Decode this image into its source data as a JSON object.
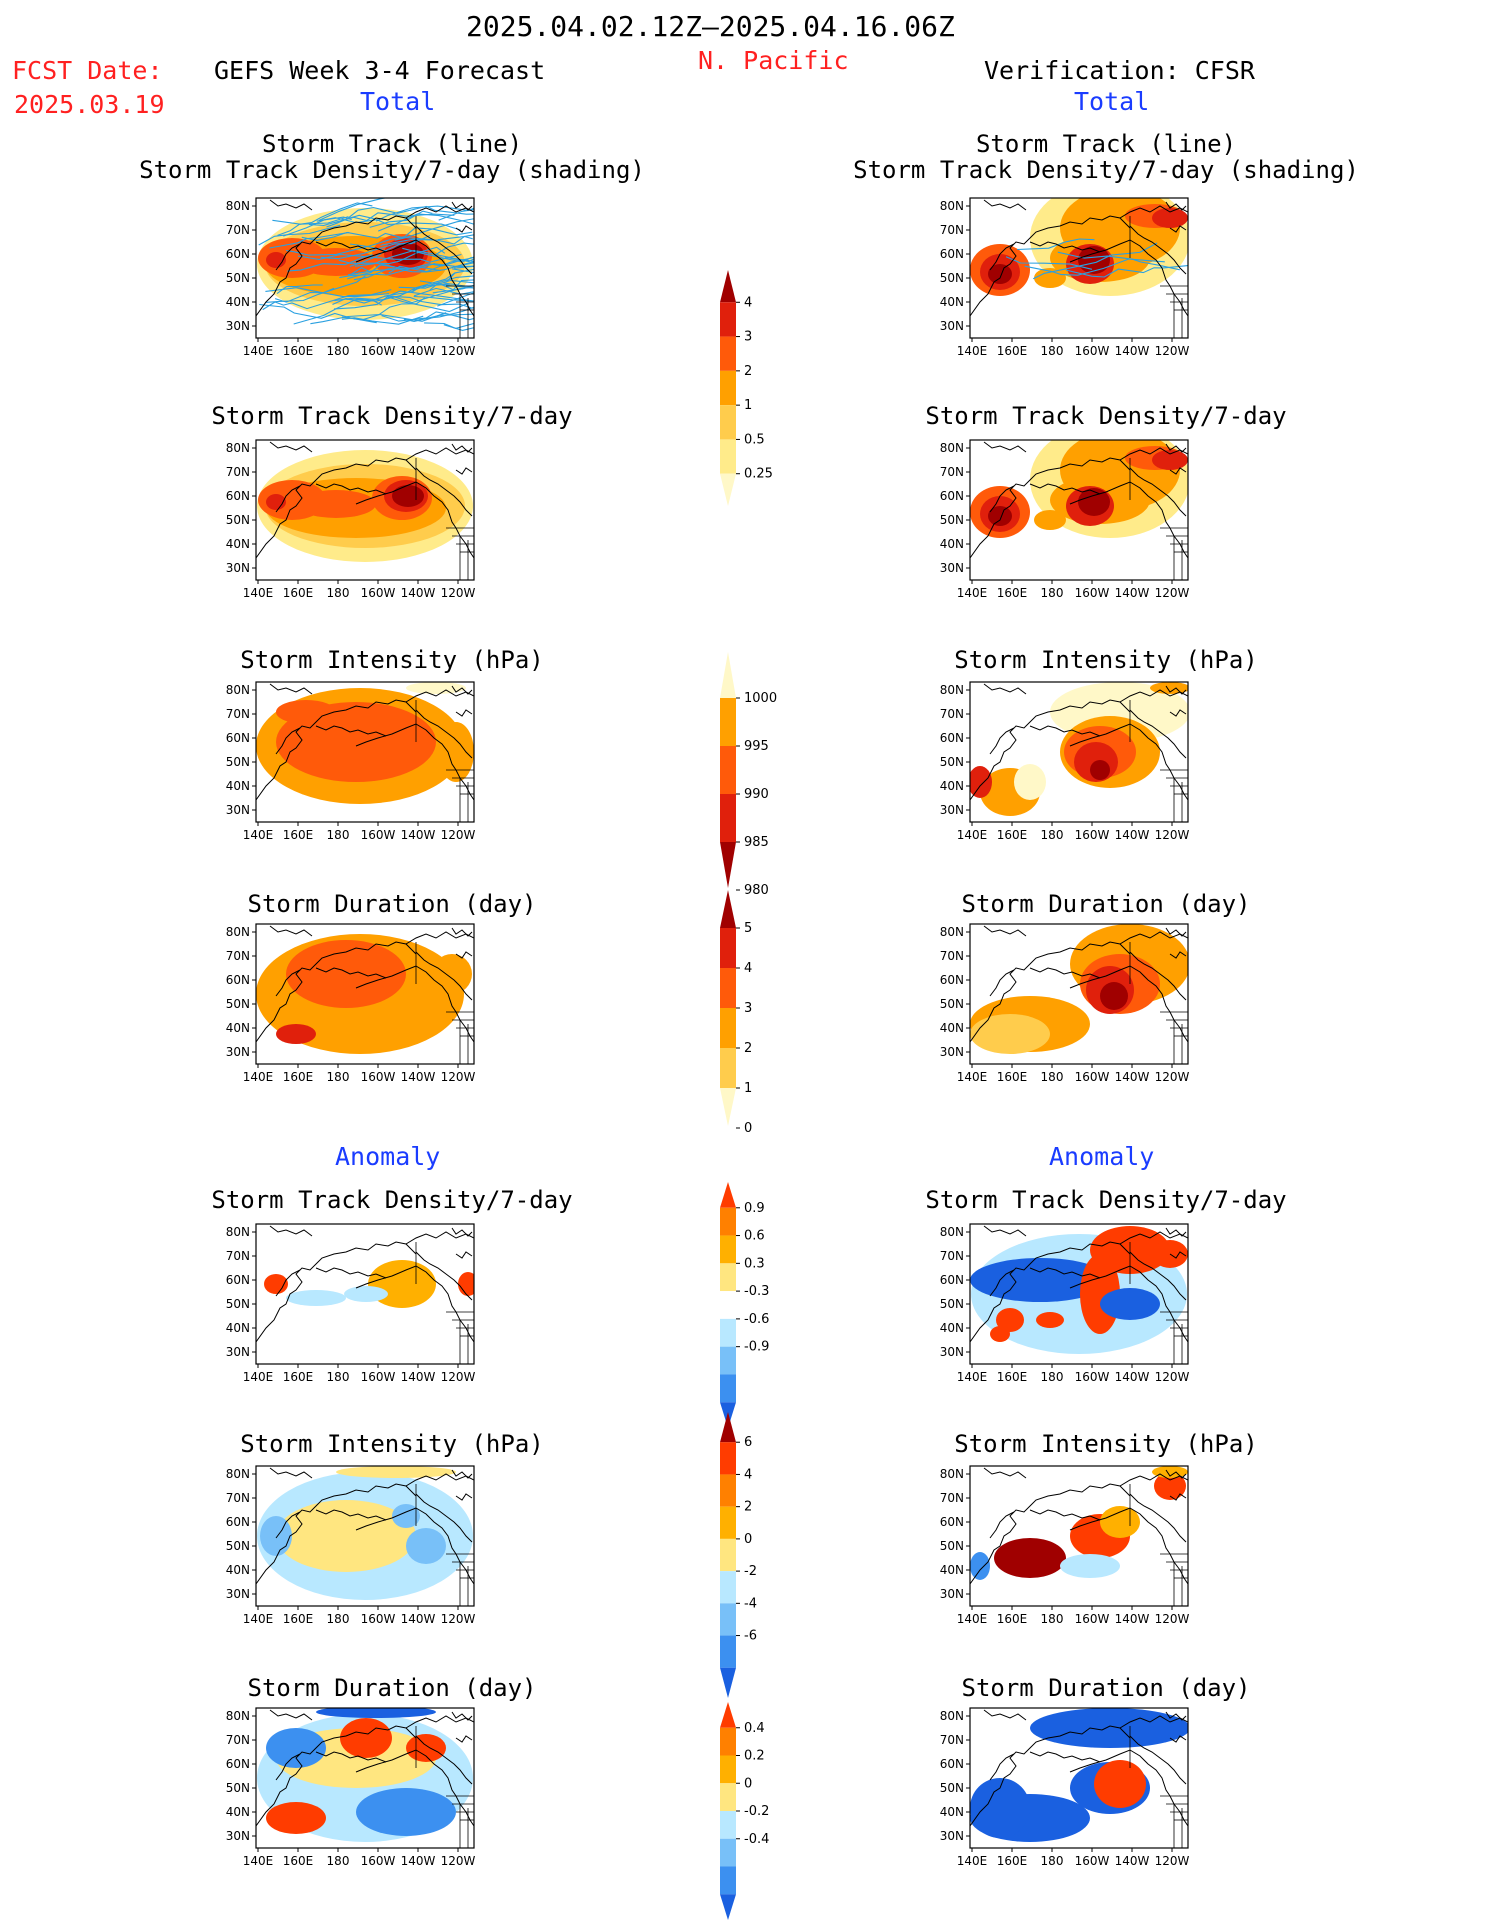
{
  "header": {
    "period": "2025.04.02.12Z–2025.04.16.06Z",
    "region": "N. Pacific",
    "fcst_label": "FCST Date:",
    "fcst_date": "2025.03.19",
    "left_title": "GEFS Week 3-4 Forecast",
    "right_title": "Verification: CFSR"
  },
  "sections": {
    "total": "Total",
    "anomaly": "Anomaly"
  },
  "panel_titles": {
    "track_line": "Storm Track (line)",
    "track_shading": "Storm Track Density/7-day (shading)",
    "density": "Storm Track Density/7-day",
    "intensity": "Storm Intensity (hPa)",
    "duration": "Storm Duration (day)"
  },
  "axes": {
    "lon_ticks": [
      "140E",
      "160E",
      "180",
      "160W",
      "140W",
      "120W"
    ],
    "lat_ticks": [
      "80N",
      "70N",
      "60N",
      "50N",
      "40N",
      "30N"
    ]
  },
  "colorbars": {
    "density": {
      "labels": [
        "4",
        "3",
        "2",
        "1",
        "0.5",
        "0.25"
      ],
      "colors": [
        "#a00000",
        "#e0200c",
        "#ff5a0a",
        "#ffa000",
        "#ffcc4c",
        "#ffeb8a",
        "#fff8c8"
      ]
    },
    "intensity": {
      "labels": [
        "1000",
        "995",
        "990",
        "985",
        "980"
      ],
      "colors": [
        "#fff8c8",
        "#ffa000",
        "#ff5a0a",
        "#e0200c",
        "#a00000"
      ]
    },
    "duration": {
      "labels": [
        "5",
        "4",
        "3",
        "2",
        "1",
        "0"
      ],
      "colors": [
        "#a00000",
        "#e0200c",
        "#ff5a0a",
        "#ffa000",
        "#ffcc4c",
        "#fff8c8"
      ]
    },
    "density_anom": {
      "labels": [
        "0.9",
        "0.6",
        "0.3",
        "-0.3",
        "-0.6",
        "-0.9"
      ],
      "colors": [
        "#ff3c00",
        "#ff8000",
        "#ffb000",
        "#ffe680",
        "#ffffff",
        "#b8e8ff",
        "#78c0f8",
        "#3c90f0",
        "#1a60e0"
      ]
    },
    "intensity_anom": {
      "labels": [
        "6",
        "4",
        "2",
        "0",
        "-2",
        "-4",
        "-6"
      ],
      "colors": [
        "#a00000",
        "#ff3c00",
        "#ff8000",
        "#ffb000",
        "#ffe680",
        "#b8e8ff",
        "#78c0f8",
        "#3c90f0",
        "#1a60e0"
      ]
    },
    "duration_anom": {
      "labels": [
        "0.4",
        "0.2",
        "0",
        "-0.2",
        "-0.4"
      ],
      "colors": [
        "#ff3c00",
        "#ff8000",
        "#ffb000",
        "#ffe680",
        "#b8e8ff",
        "#78c0f8",
        "#3c90f0",
        "#1a60e0"
      ]
    }
  },
  "colors": {
    "title_red": "#ff2020",
    "section_blue": "#1a3cff",
    "track_line": "#2aa0e0"
  }
}
